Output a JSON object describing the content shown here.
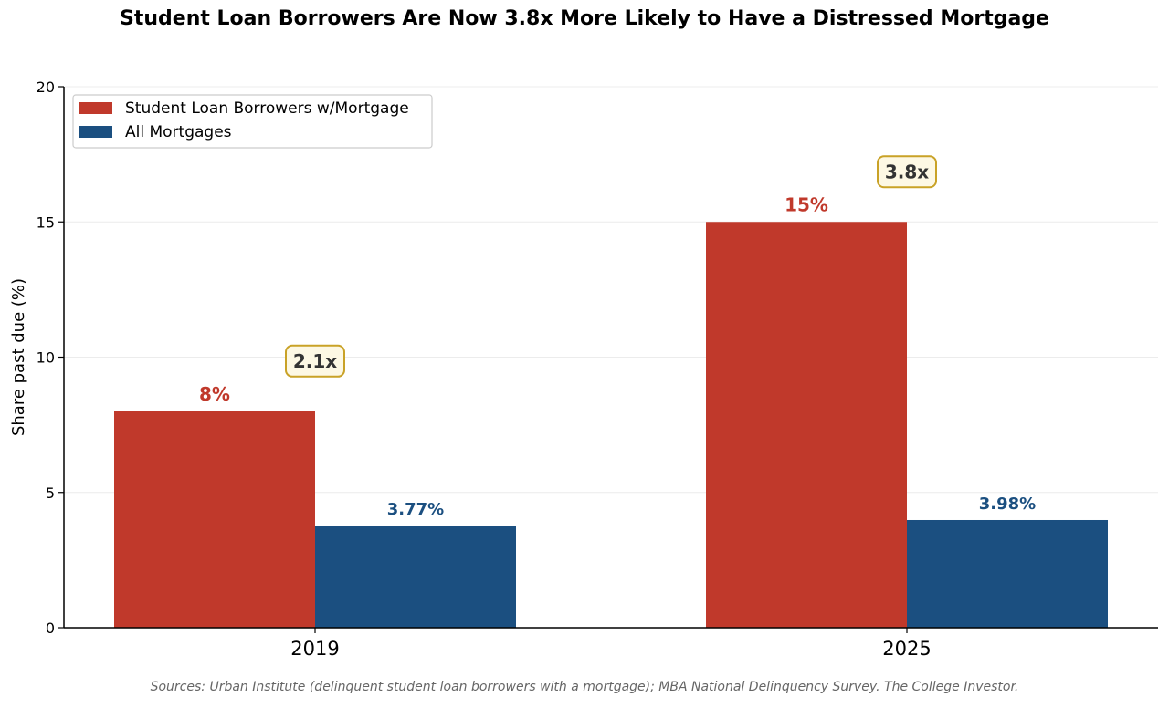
{
  "chart_data": {
    "type": "bar",
    "title": "Student Loan Borrowers Are Now 3.8x More Likely to Have a Distressed Mortgage",
    "ylabel": "Share past due (%)",
    "xlabel": "",
    "categories": [
      "2019",
      "2025"
    ],
    "series": [
      {
        "name": "Student Loan Borrowers w/Mortgage",
        "values": [
          8,
          15
        ],
        "labels": [
          "8%",
          "15%"
        ],
        "color": "#C0392B"
      },
      {
        "name": "All Mortgages",
        "values": [
          3.77,
          3.98
        ],
        "labels": [
          "3.77%",
          "3.98%"
        ],
        "color": "#1B4F80"
      }
    ],
    "ratio_annotations": [
      {
        "category": "2019",
        "text": "2.1x"
      },
      {
        "category": "2025",
        "text": "3.8x"
      }
    ],
    "ylim": [
      0,
      20
    ],
    "yticks": [
      "0",
      "5",
      "10",
      "15",
      "20"
    ],
    "grid": true,
    "legend_position": "top-left",
    "annotation_style": {
      "box_fill": "#FDF8E4",
      "box_stroke": "#C9A227",
      "text_color": "#333333"
    }
  },
  "footer": {
    "source": "Sources: Urban Institute (delinquent student loan borrowers with a mortgage); MBA National Delinquency Survey.  The College Investor."
  }
}
